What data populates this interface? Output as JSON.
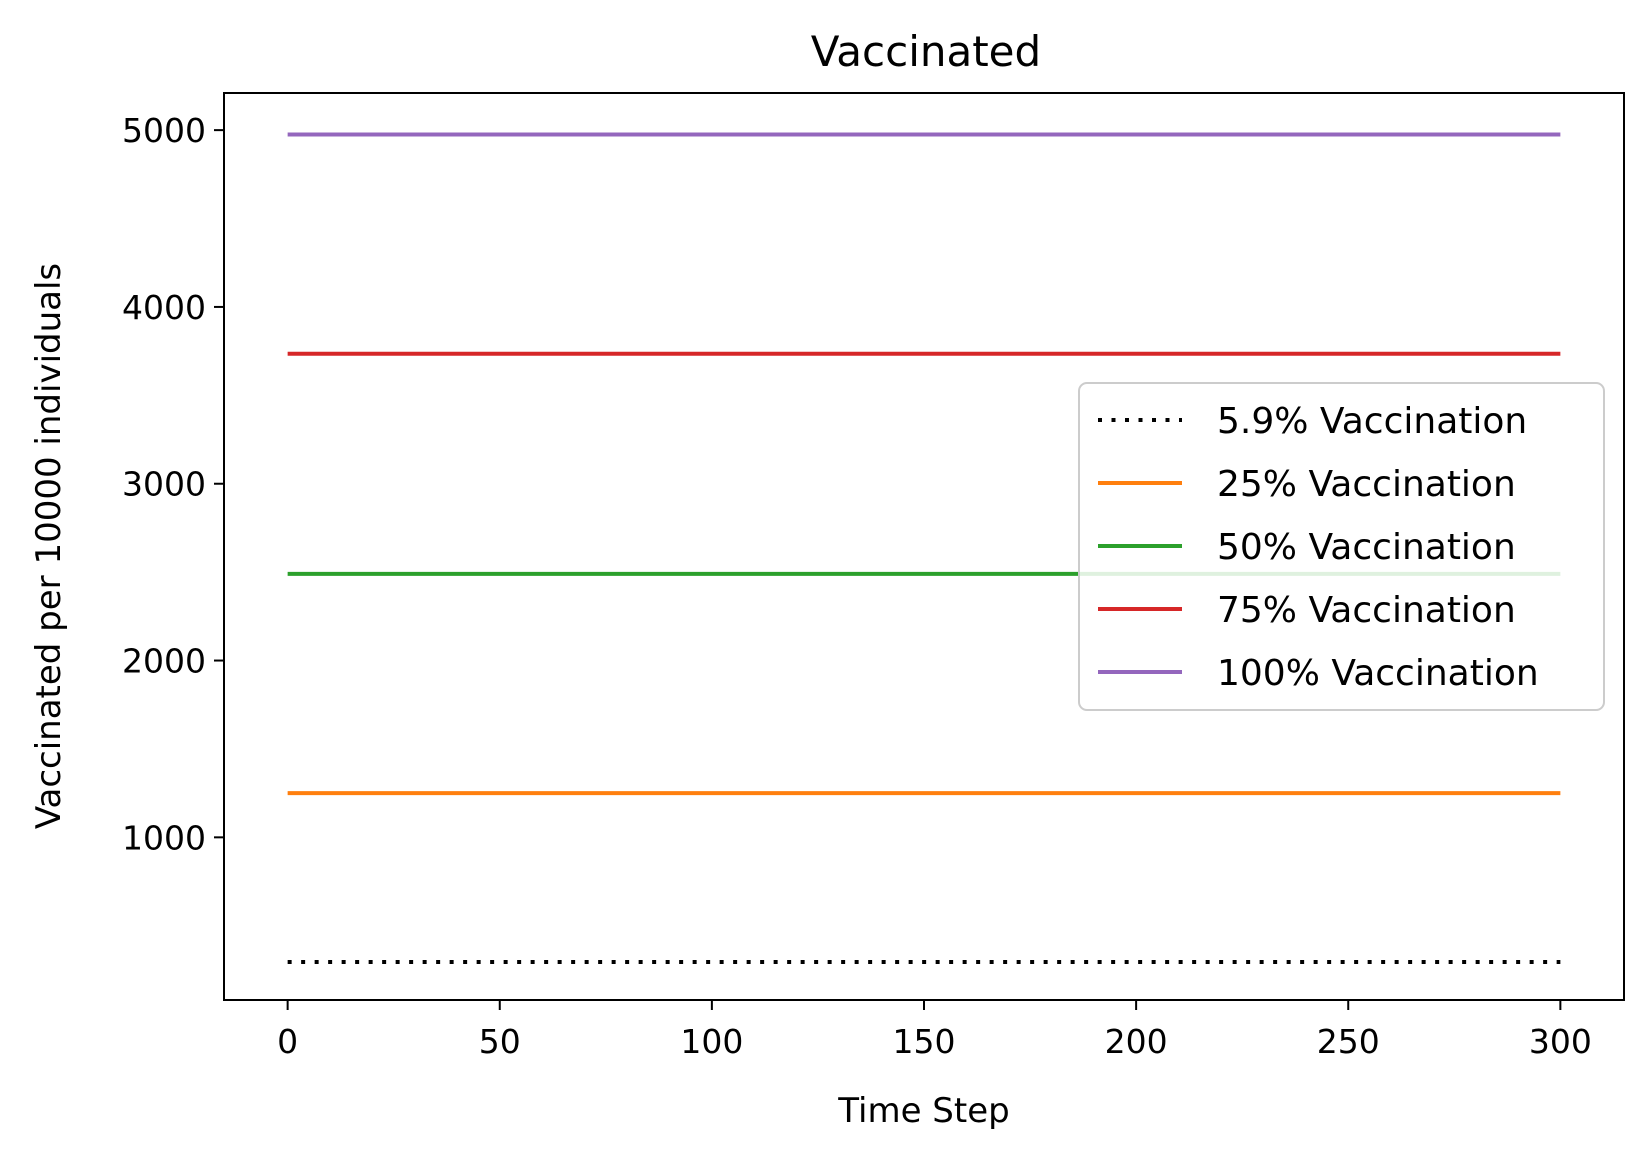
{
  "chart_data": {
    "type": "line",
    "title": "Vaccinated",
    "xlabel": "Time Step",
    "ylabel": "Vaccinated per 10000 individuals",
    "xlim": [
      -15,
      315
    ],
    "ylim": [
      80,
      5210
    ],
    "xticks": [
      0,
      50,
      100,
      150,
      200,
      250,
      300
    ],
    "yticks": [
      1000,
      2000,
      3000,
      4000,
      5000
    ],
    "grid": false,
    "legend_position": "center-right",
    "series": [
      {
        "name": "5.9% Vaccination",
        "color": "#000000",
        "dash": "dotted",
        "x": [
          0,
          300
        ],
        "y": [
          295,
          295
        ]
      },
      {
        "name": "25% Vaccination",
        "color": "#ff7f0e",
        "dash": "solid",
        "x": [
          0,
          300
        ],
        "y": [
          1250,
          1250
        ]
      },
      {
        "name": "50% Vaccination",
        "color": "#2ca02c",
        "dash": "solid",
        "x": [
          0,
          300
        ],
        "y": [
          2490,
          2490
        ]
      },
      {
        "name": "75% Vaccination",
        "color": "#d62728",
        "dash": "solid",
        "x": [
          0,
          300
        ],
        "y": [
          3735,
          3735
        ]
      },
      {
        "name": "100% Vaccination",
        "color": "#9467bd",
        "dash": "solid",
        "x": [
          0,
          300
        ],
        "y": [
          4975,
          4975
        ]
      }
    ]
  }
}
